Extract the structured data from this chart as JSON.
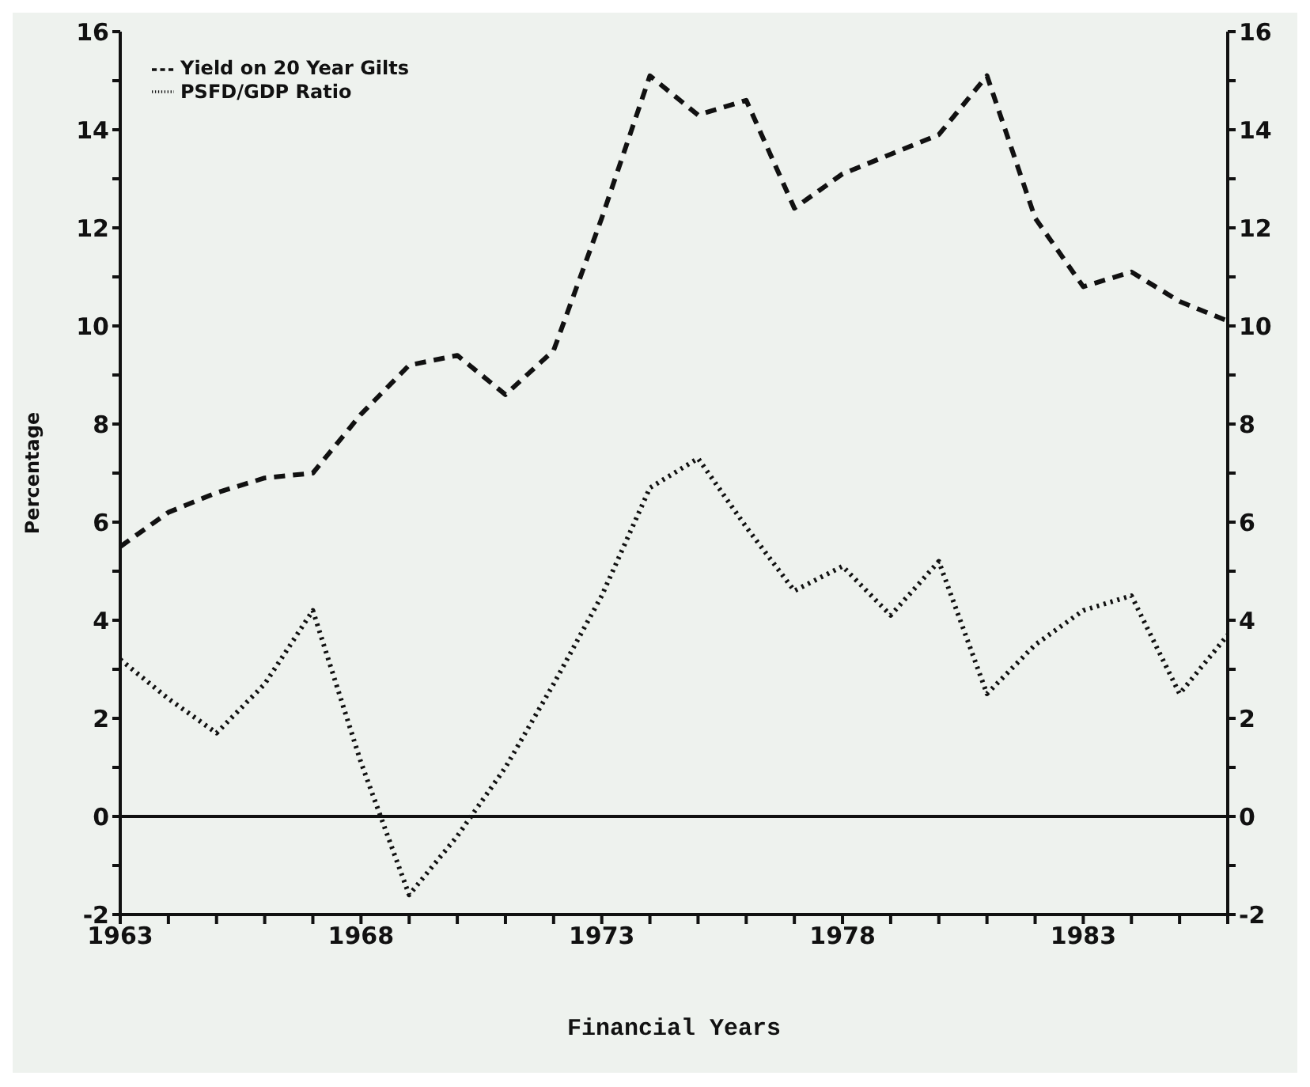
{
  "chart_data": {
    "type": "line",
    "xlabel": "Financial Years",
    "ylabel": "Percentage",
    "x": [
      1963,
      1964,
      1965,
      1966,
      1967,
      1968,
      1969,
      1970,
      1971,
      1972,
      1973,
      1974,
      1975,
      1976,
      1977,
      1978,
      1979,
      1980,
      1981,
      1982,
      1983,
      1984,
      1985,
      1986
    ],
    "series": [
      {
        "name": "Yield on 20 Year Gilts",
        "color": "#111111",
        "line_style": "dashed",
        "values": [
          5.5,
          6.2,
          6.6,
          6.9,
          7.0,
          8.2,
          9.2,
          9.4,
          8.6,
          9.5,
          12.2,
          15.1,
          14.3,
          14.6,
          12.4,
          13.1,
          13.5,
          13.9,
          15.1,
          12.2,
          10.8,
          11.1,
          10.5,
          10.1
        ]
      },
      {
        "name": "PSFD/GDP Ratio",
        "color": "#111111",
        "line_style": "dotted",
        "values": [
          3.2,
          2.4,
          1.7,
          2.7,
          4.2,
          1.1,
          -1.6,
          -0.4,
          1.0,
          2.7,
          4.5,
          6.7,
          7.3,
          5.9,
          4.6,
          5.1,
          4.1,
          5.2,
          2.5,
          3.5,
          4.2,
          4.5,
          2.5,
          3.7
        ]
      }
    ],
    "xlim": [
      1963,
      1986
    ],
    "xticks": [
      1963,
      {
        "value": 1964,
        "label": null
      },
      {
        "value": 1965,
        "label": null
      },
      {
        "value": 1966,
        "label": null
      },
      {
        "value": 1967,
        "label": null
      },
      1968,
      {
        "value": 1969,
        "label": null
      },
      {
        "value": 1970,
        "label": null
      },
      {
        "value": 1971,
        "label": null
      },
      {
        "value": 1972,
        "label": null
      },
      1973,
      {
        "value": 1974,
        "label": null
      },
      {
        "value": 1975,
        "label": null
      },
      {
        "value": 1976,
        "label": null
      },
      {
        "value": 1977,
        "label": null
      },
      1978,
      {
        "value": 1979,
        "label": null
      },
      {
        "value": 1980,
        "label": null
      },
      {
        "value": 1981,
        "label": null
      },
      {
        "value": 1982,
        "label": null
      },
      1983,
      {
        "value": 1984,
        "label": null
      },
      {
        "value": 1985,
        "label": null
      },
      {
        "value": 1986,
        "label": null
      }
    ],
    "ylim": [
      -2,
      16
    ],
    "yticks": [
      -2,
      {
        "value": -1,
        "label": null
      },
      0,
      {
        "value": 1,
        "label": null
      },
      2,
      {
        "value": 3,
        "label": null
      },
      4,
      {
        "value": 5,
        "label": null
      },
      6,
      {
        "value": 7,
        "label": null
      },
      8,
      {
        "value": 9,
        "label": null
      },
      10,
      {
        "value": 11,
        "label": null
      },
      12,
      {
        "value": 13,
        "label": null
      },
      14,
      {
        "value": 15,
        "label": null
      },
      16
    ],
    "y2lim": [
      -2,
      16
    ],
    "y2ticks": [
      -2,
      {
        "value": -1,
        "label": null
      },
      0,
      {
        "value": 1,
        "label": null
      },
      2,
      {
        "value": 3,
        "label": null
      },
      4,
      {
        "value": 5,
        "label": null
      },
      6,
      {
        "value": 7,
        "label": null
      },
      8,
      {
        "value": 9,
        "label": null
      },
      10,
      {
        "value": 11,
        "label": null
      },
      12,
      {
        "value": 13,
        "label": null
      },
      14,
      {
        "value": 15,
        "label": null
      },
      16
    ],
    "ref_lines": [
      {
        "axis": "y",
        "value": 0,
        "color": "#111111",
        "line_style": "solid"
      }
    ],
    "grid": false,
    "legend": "top left"
  }
}
